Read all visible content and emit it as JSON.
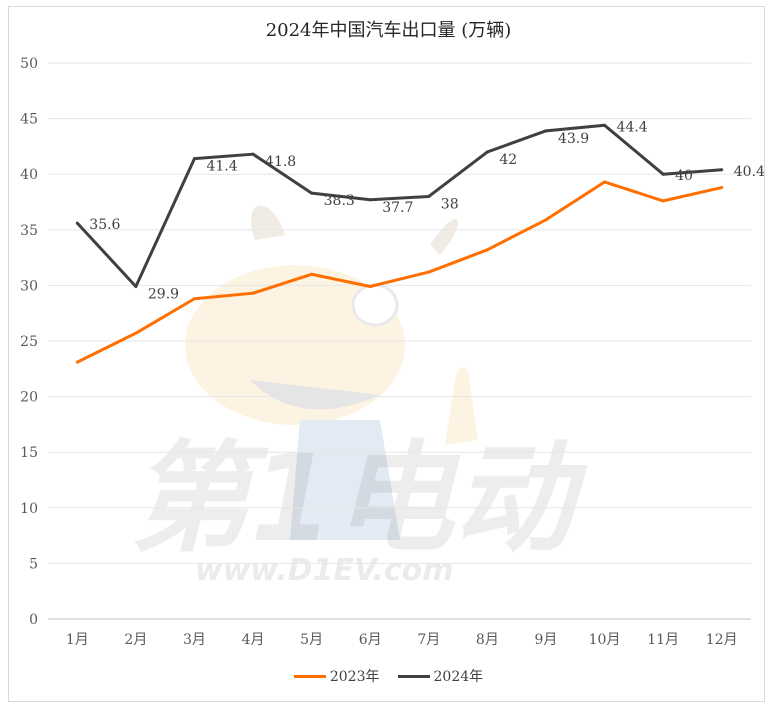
{
  "chart_data": {
    "type": "line",
    "title": "2024年中国汽车出口量 (万辆)",
    "categories": [
      "1月",
      "2月",
      "3月",
      "4月",
      "5月",
      "6月",
      "7月",
      "8月",
      "9月",
      "10月",
      "11月",
      "12月"
    ],
    "ylim": [
      0,
      50
    ],
    "yticks": [
      "0",
      "5",
      "10",
      "15",
      "20",
      "25",
      "30",
      "35",
      "40",
      "45",
      "50"
    ],
    "grid": true,
    "legend_position": "bottom",
    "series": [
      {
        "name": "2023年",
        "color": "#ff6f00",
        "values": [
          23.1,
          25.7,
          28.8,
          29.3,
          31.0,
          29.9,
          31.2,
          33.2,
          35.9,
          39.3,
          37.6,
          38.8
        ],
        "labels": []
      },
      {
        "name": "2024年",
        "color": "#404040",
        "values": [
          35.6,
          29.9,
          41.4,
          41.8,
          38.3,
          37.7,
          38.0,
          42.0,
          43.9,
          44.4,
          40.0,
          40.4
        ],
        "labels": [
          "35.6",
          "29.9",
          "41.4",
          "41.8",
          "38.3",
          "37.7",
          "38",
          "42",
          "43.9",
          "44.4",
          "40",
          "40.4"
        ]
      }
    ]
  },
  "watermark": {
    "brand_text": "第1电动",
    "url_text": "www.D1EV.com"
  }
}
